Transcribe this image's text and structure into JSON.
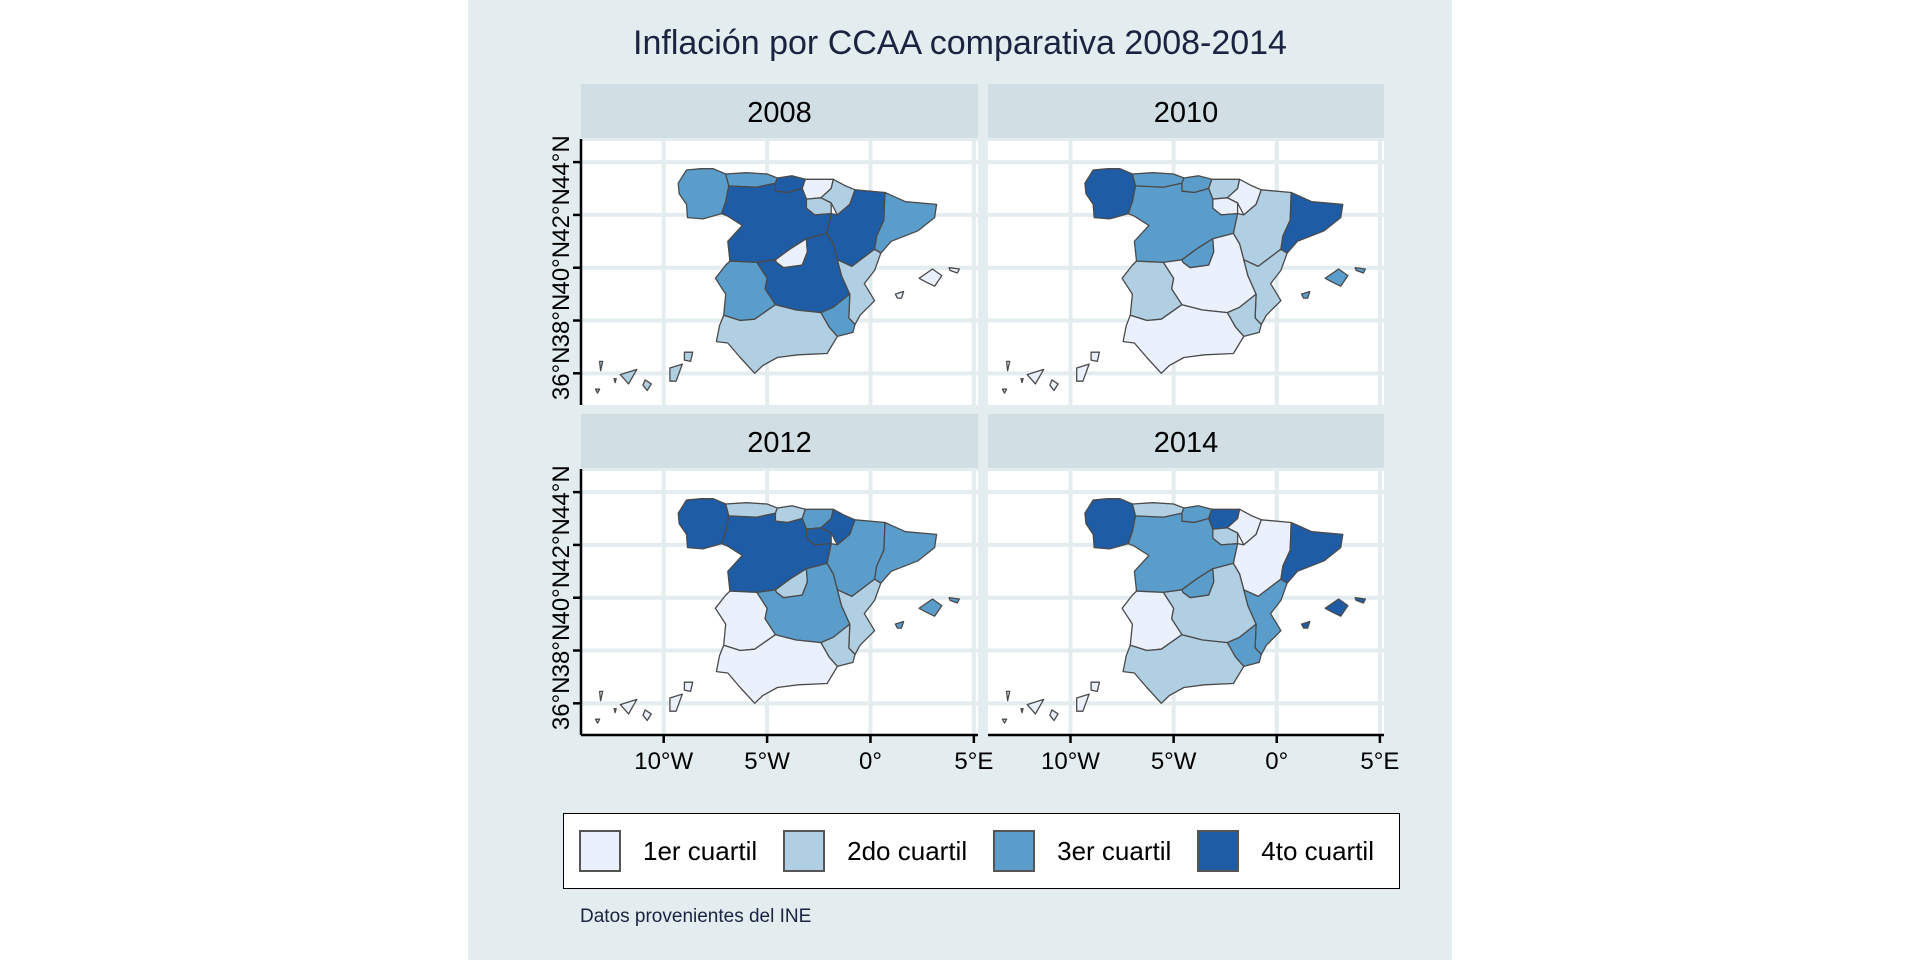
{
  "title": "Inflación por CCAA comparativa 2008-2014",
  "caption": "Datos provenientes del INE",
  "chart_data": {
    "type": "choropleth-facet",
    "title": "Inflación por CCAA comparativa 2008-2014",
    "facets": [
      "2008",
      "2010",
      "2012",
      "2014"
    ],
    "x_ticks": [
      "10°W",
      "5°W",
      "0°",
      "5°E"
    ],
    "x_tick_values": [
      -10,
      -5,
      0,
      5
    ],
    "y_ticks": [
      "36°N",
      "38°N",
      "40°N",
      "42°N",
      "44°N"
    ],
    "y_tick_values": [
      36,
      38,
      40,
      42,
      44
    ],
    "xlim": [
      -14,
      5.2
    ],
    "ylim": [
      34.8,
      44.8
    ],
    "grid": true,
    "legend_position": "bottom",
    "legend": [
      {
        "label": "1er cuartil",
        "color": "#eaf0fc"
      },
      {
        "label": "2do cuartil",
        "color": "#b0cfe3"
      },
      {
        "label": "3er cuartil",
        "color": "#5a9dcb"
      },
      {
        "label": "4to cuartil",
        "color": "#1f5ca6"
      }
    ],
    "regions": [
      "Galicia",
      "Asturias",
      "Cantabria",
      "País Vasco",
      "Navarra",
      "La Rioja",
      "Castilla y León",
      "Aragón",
      "Cataluña",
      "Madrid",
      "Castilla-La Mancha",
      "Extremadura",
      "Comunitat Valenciana",
      "Región de Murcia",
      "Andalucía",
      "Illes Balears",
      "Canarias"
    ],
    "quartiles": {
      "2008": {
        "Galicia": 3,
        "Asturias": 3,
        "Cantabria": 4,
        "País Vasco": 1,
        "Navarra": 2,
        "La Rioja": 2,
        "Castilla y León": 4,
        "Aragón": 4,
        "Cataluña": 3,
        "Madrid": 1,
        "Castilla-La Mancha": 4,
        "Extremadura": 3,
        "Comunitat Valenciana": 2,
        "Región de Murcia": 3,
        "Andalucía": 2,
        "Illes Balears": 1,
        "Canarias": 2
      },
      "2010": {
        "Galicia": 4,
        "Asturias": 3,
        "Cantabria": 3,
        "País Vasco": 2,
        "Navarra": 1,
        "La Rioja": 1,
        "Castilla y León": 3,
        "Aragón": 2,
        "Cataluña": 4,
        "Madrid": 3,
        "Castilla-La Mancha": 1,
        "Extremadura": 2,
        "Comunitat Valenciana": 2,
        "Región de Murcia": 2,
        "Andalucía": 1,
        "Illes Balears": 3,
        "Canarias": 1
      },
      "2012": {
        "Galicia": 4,
        "Asturias": 2,
        "Cantabria": 2,
        "País Vasco": 3,
        "Navarra": 4,
        "La Rioja": 4,
        "Castilla y León": 4,
        "Aragón": 3,
        "Cataluña": 3,
        "Madrid": 2,
        "Castilla-La Mancha": 3,
        "Extremadura": 1,
        "Comunitat Valenciana": 2,
        "Región de Murcia": 2,
        "Andalucía": 1,
        "Illes Balears": 3,
        "Canarias": 1
      },
      "2014": {
        "Galicia": 4,
        "Asturias": 2,
        "Cantabria": 3,
        "País Vasco": 4,
        "Navarra": 1,
        "La Rioja": 2,
        "Castilla y León": 3,
        "Aragón": 1,
        "Cataluña": 4,
        "Madrid": 3,
        "Castilla-La Mancha": 2,
        "Extremadura": 1,
        "Comunitat Valenciana": 3,
        "Región de Murcia": 3,
        "Andalucía": 2,
        "Illes Balears": 4,
        "Canarias": 1
      }
    }
  }
}
